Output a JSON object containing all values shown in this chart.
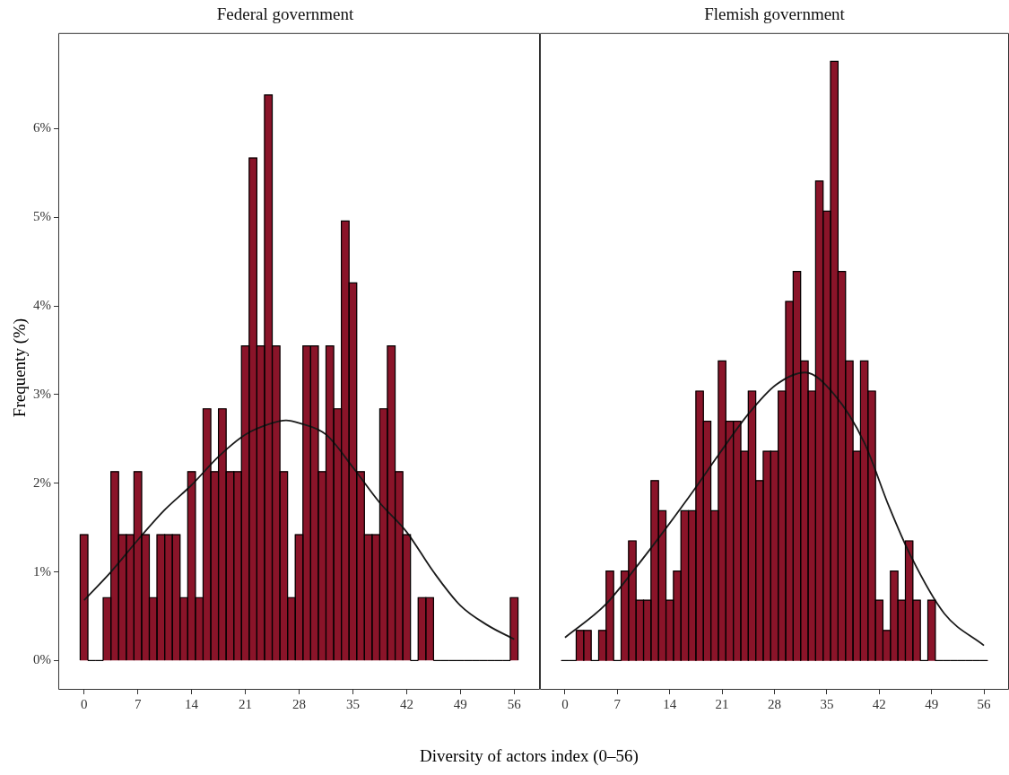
{
  "chart_data": [
    {
      "type": "histogram",
      "title": "Federal government",
      "xlabel": "Diversity of actors index (0–56)",
      "ylabel": "Frequenty (%)",
      "bins": [
        -0.5,
        0.5,
        1.5,
        2.5,
        3.5,
        4.5,
        5.5,
        6.5,
        7.5,
        8.5,
        9.5,
        10.5,
        11.5,
        12.5,
        13.5,
        14.5,
        15.5,
        16.5,
        17.5,
        18.5,
        19.5,
        20.5,
        21.5,
        22.5,
        23.5,
        24.5,
        25.5,
        26.5,
        27.5,
        28.5,
        29.5,
        30.5,
        31.5,
        32.5,
        33.5,
        34.5,
        35.5,
        36.5,
        37.5,
        38.5,
        39.5,
        40.5,
        41.5,
        42.5,
        43.5,
        44.5,
        45.5,
        46.5,
        47.5,
        48.5,
        49.5,
        50.5,
        51.5,
        52.5,
        53.5,
        54.5,
        55.5,
        56.5
      ],
      "values": [
        1.42,
        0,
        0,
        0.71,
        2.13,
        1.42,
        1.42,
        2.13,
        1.42,
        0.71,
        1.42,
        1.42,
        1.42,
        0.71,
        2.13,
        0.71,
        2.84,
        2.13,
        2.84,
        2.13,
        2.13,
        3.55,
        5.67,
        3.55,
        6.38,
        3.55,
        2.13,
        0.71,
        1.42,
        3.55,
        3.55,
        2.13,
        3.55,
        2.84,
        4.96,
        4.26,
        2.13,
        1.42,
        1.42,
        2.84,
        3.55,
        2.13,
        1.42,
        0,
        0.71,
        0.71,
        0,
        0,
        0,
        0,
        0,
        0,
        0,
        0,
        0,
        0,
        0.71
      ],
      "color": "#8a1429",
      "series": [
        {
          "type": "line",
          "color": "#1a1a1a",
          "x": [
            0,
            3.5,
            7,
            10.5,
            14,
            17.5,
            21,
            24.5,
            26.3,
            28,
            31.5,
            35,
            38.5,
            42,
            45.5,
            49,
            52.5,
            56
          ],
          "values": [
            0.68,
            1.0,
            1.36,
            1.7,
            1.98,
            2.3,
            2.55,
            2.68,
            2.71,
            2.68,
            2.55,
            2.18,
            1.78,
            1.45,
            1.0,
            0.62,
            0.4,
            0.24
          ]
        }
      ],
      "marker": "none",
      "xlim": [
        -3.35,
        59.35
      ],
      "xticks": [
        0,
        7,
        14,
        21,
        28,
        35,
        42,
        49,
        56
      ],
      "ylim": [
        -0.33,
        7.08
      ],
      "yticks": [
        {
          "value": 0,
          "label": "0%"
        },
        {
          "value": 1,
          "label": "1%"
        },
        {
          "value": 2,
          "label": "2%"
        },
        {
          "value": 3,
          "label": "3%"
        },
        {
          "value": 4,
          "label": "4%"
        },
        {
          "value": 5,
          "label": "5%"
        },
        {
          "value": 6,
          "label": "6%"
        }
      ],
      "grid": false,
      "legend": false
    },
    {
      "type": "histogram",
      "title": "Flemish government",
      "bins": [
        -0.5,
        0.5,
        1.5,
        2.5,
        3.5,
        4.5,
        5.5,
        6.5,
        7.5,
        8.5,
        9.5,
        10.5,
        11.5,
        12.5,
        13.5,
        14.5,
        15.5,
        16.5,
        17.5,
        18.5,
        19.5,
        20.5,
        21.5,
        22.5,
        23.5,
        24.5,
        25.5,
        26.5,
        27.5,
        28.5,
        29.5,
        30.5,
        31.5,
        32.5,
        33.5,
        34.5,
        35.5,
        36.5,
        37.5,
        38.5,
        39.5,
        40.5,
        41.5,
        42.5,
        43.5,
        44.5,
        45.5,
        46.5,
        47.5,
        48.5,
        49.5,
        50.5,
        51.5,
        52.5,
        53.5,
        54.5,
        55.5,
        56.5
      ],
      "values": [
        0,
        0,
        0.34,
        0.34,
        0,
        0.34,
        1.01,
        0,
        1.01,
        1.35,
        0.68,
        0.68,
        2.03,
        1.69,
        0.68,
        1.01,
        1.69,
        1.69,
        3.04,
        2.7,
        1.69,
        3.38,
        2.7,
        2.7,
        2.36,
        3.04,
        2.03,
        2.36,
        2.36,
        3.04,
        4.05,
        4.39,
        3.38,
        3.04,
        5.41,
        5.07,
        6.76,
        4.39,
        3.38,
        2.36,
        3.38,
        3.04,
        0.68,
        0.34,
        1.01,
        0.68,
        1.35,
        0.68,
        0,
        0.68,
        0,
        0,
        0,
        0,
        0,
        0,
        0
      ],
      "color": "#8a1429",
      "series": [
        {
          "type": "line",
          "color": "#1a1a1a",
          "x": [
            0,
            5.4,
            9.3,
            13.3,
            17.2,
            20.6,
            24.5,
            28.2,
            32.1,
            36,
            40,
            43.3,
            46.1,
            50.7,
            56
          ],
          "values": [
            0.26,
            0.63,
            1.03,
            1.47,
            1.92,
            2.33,
            2.78,
            3.11,
            3.25,
            3.0,
            2.46,
            1.74,
            1.2,
            0.53,
            0.17
          ]
        }
      ],
      "marker": "none",
      "xlim": [
        -3.35,
        59.35
      ],
      "xticks": [
        0,
        7,
        14,
        21,
        28,
        35,
        42,
        49,
        56
      ],
      "ylim": [
        -0.33,
        7.08
      ],
      "tick_labels": "x",
      "grid": false,
      "legend": false
    }
  ]
}
